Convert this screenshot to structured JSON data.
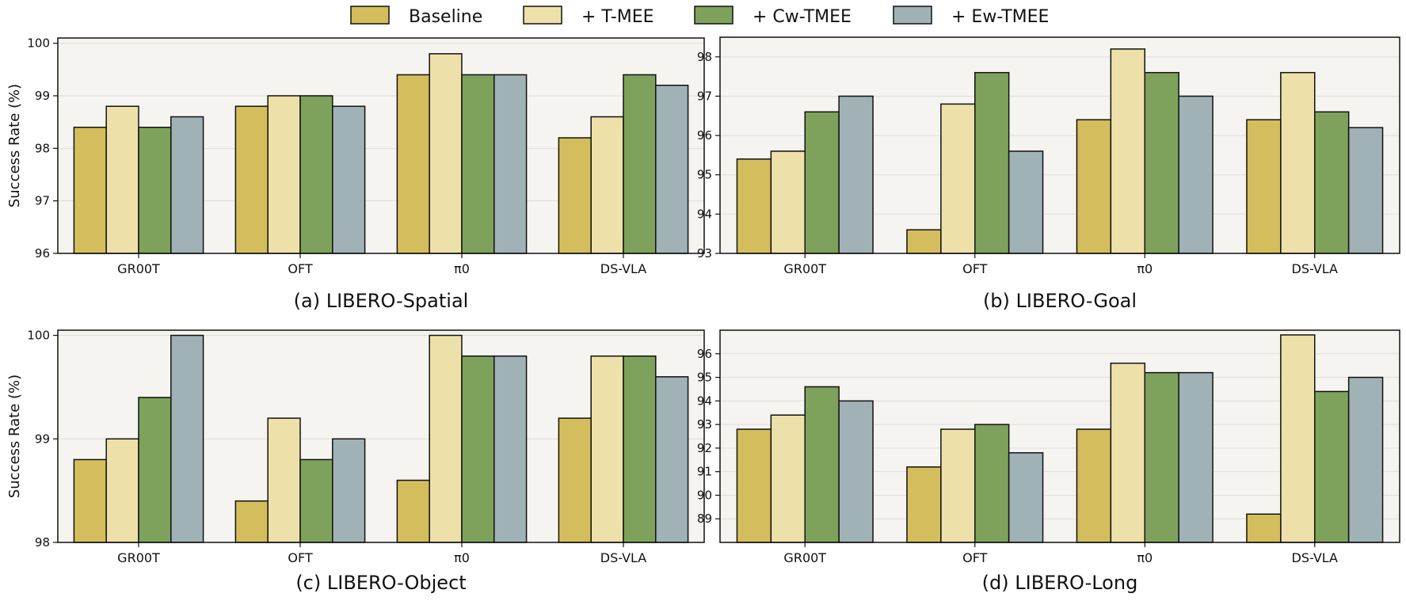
{
  "legend": [
    {
      "name": "Baseline",
      "color": "#d4bd5c"
    },
    {
      "name": "+ T-MEE",
      "color": "#ede1a9"
    },
    {
      "name": "+ Cw-TMEE",
      "color": "#7ea25b"
    },
    {
      "name": "+ Ew-TMEE",
      "color": "#a0b2b5"
    }
  ],
  "colors": {
    "panel_bg": "#f6f4f1",
    "bar_edge": "#111111",
    "grid": "#dddddd"
  },
  "chart_data": [
    {
      "type": "bar",
      "caption": "(a) LIBERO-Spatial",
      "ylabel": "Success Rate (%)",
      "categories": [
        "GR00T",
        "OFT",
        "π0",
        "DS-VLA"
      ],
      "ylim": [
        96,
        100.1
      ],
      "yticks": [
        96,
        97,
        98,
        99,
        100
      ],
      "series": [
        {
          "name": "Baseline",
          "values": [
            98.4,
            98.8,
            99.4,
            98.2
          ]
        },
        {
          "name": "+ T-MEE",
          "values": [
            98.8,
            99.0,
            99.8,
            98.6
          ]
        },
        {
          "name": "+ Cw-TMEE",
          "values": [
            98.4,
            99.0,
            99.4,
            99.4
          ]
        },
        {
          "name": "+ Ew-TMEE",
          "values": [
            98.6,
            98.8,
            99.4,
            99.2
          ]
        }
      ]
    },
    {
      "type": "bar",
      "caption": "(b) LIBERO-Goal",
      "ylabel": "",
      "categories": [
        "GR00T",
        "OFT",
        "π0",
        "DS-VLA"
      ],
      "ylim": [
        93,
        98.5
      ],
      "yticks": [
        93,
        94,
        95,
        96,
        97,
        98
      ],
      "series": [
        {
          "name": "Baseline",
          "values": [
            95.4,
            93.6,
            96.4,
            96.4
          ]
        },
        {
          "name": "+ T-MEE",
          "values": [
            95.6,
            96.8,
            98.2,
            97.6
          ]
        },
        {
          "name": "+ Cw-TMEE",
          "values": [
            96.6,
            97.6,
            97.6,
            96.6
          ]
        },
        {
          "name": "+ Ew-TMEE",
          "values": [
            97.0,
            95.6,
            97.0,
            96.2
          ]
        }
      ]
    },
    {
      "type": "bar",
      "caption": "(c) LIBERO-Object",
      "ylabel": "Success Rate (%)",
      "categories": [
        "GR00T",
        "OFT",
        "π0",
        "DS-VLA"
      ],
      "ylim": [
        98,
        100.05
      ],
      "yticks": [
        98,
        99,
        100
      ],
      "series": [
        {
          "name": "Baseline",
          "values": [
            98.8,
            98.4,
            98.6,
            99.2
          ]
        },
        {
          "name": "+ T-MEE",
          "values": [
            99.0,
            99.2,
            100.0,
            99.8
          ]
        },
        {
          "name": "+ Cw-TMEE",
          "values": [
            99.4,
            98.8,
            99.8,
            99.8
          ]
        },
        {
          "name": "+ Ew-TMEE",
          "values": [
            100.0,
            99.0,
            99.8,
            99.6
          ]
        }
      ]
    },
    {
      "type": "bar",
      "caption": "(d) LIBERO-Long",
      "ylabel": "",
      "categories": [
        "GR00T",
        "OFT",
        "π0",
        "DS-VLA"
      ],
      "ylim": [
        88,
        97
      ],
      "yticks": [
        89,
        90,
        91,
        92,
        93,
        94,
        95,
        96
      ],
      "series": [
        {
          "name": "Baseline",
          "values": [
            92.8,
            91.2,
            92.8,
            89.2
          ]
        },
        {
          "name": "+ T-MEE",
          "values": [
            93.4,
            92.8,
            95.6,
            96.8
          ]
        },
        {
          "name": "+ Cw-TMEE",
          "values": [
            94.6,
            93.0,
            95.2,
            94.4
          ]
        },
        {
          "name": "+ Ew-TMEE",
          "values": [
            94.0,
            91.8,
            95.2,
            95.0
          ]
        }
      ]
    }
  ]
}
